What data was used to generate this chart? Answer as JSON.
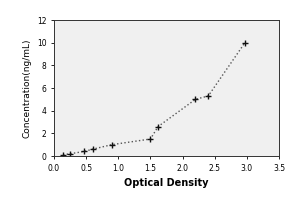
{
  "x_data": [
    0.14,
    0.25,
    0.47,
    0.6,
    0.9,
    1.5,
    1.62,
    2.2,
    2.4,
    2.97
  ],
  "y_data": [
    0.1,
    0.2,
    0.4,
    0.6,
    1.0,
    1.5,
    2.6,
    5.0,
    5.3,
    10.0
  ],
  "xlabel": "Optical Density",
  "ylabel": "Concentration(ng/mL)",
  "xlim": [
    0,
    3.5
  ],
  "ylim": [
    0,
    12
  ],
  "xticks": [
    0,
    0.5,
    1.0,
    1.5,
    2.0,
    2.5,
    3.0,
    3.5
  ],
  "yticks": [
    0,
    2,
    4,
    6,
    8,
    10,
    12
  ],
  "line_color": "#555555",
  "marker_color": "#111111",
  "bg_color": "#f0f0f0",
  "fig_color": "#ffffff",
  "axis_fontsize": 6.5,
  "tick_fontsize": 5.5,
  "xlabel_fontsize": 7,
  "xlabel_fontweight": "bold"
}
